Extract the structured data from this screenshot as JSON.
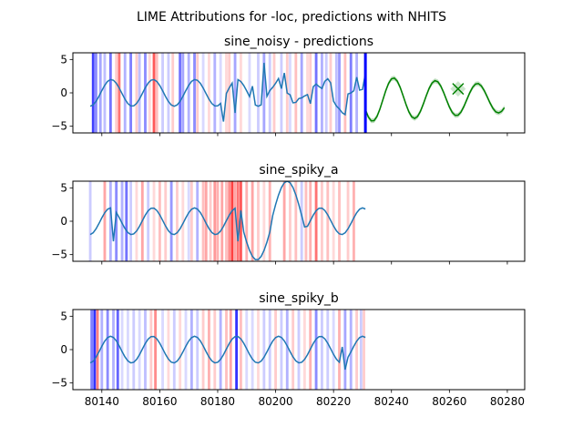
{
  "figure": {
    "suptitle": "LIME Attributions for -loc, predictions with NHITS"
  },
  "chart_data": [
    {
      "type": "line",
      "title": "sine_noisy - predictions",
      "xlim": [
        80130,
        80286
      ],
      "ylim": [
        -6,
        6
      ],
      "yticks": [
        5,
        0,
        -5
      ],
      "xticks": [
        80140,
        80160,
        80180,
        80200,
        80220,
        80240,
        80260,
        80280
      ],
      "show_xtick_labels": false,
      "forecast_start": 80231,
      "colors": {
        "series": "#1f77b4",
        "prediction": "#008000",
        "positive": "#ff0000",
        "negative": "#0000ff",
        "boundary": "#0000ff"
      },
      "series": [
        {
          "name": "",
          "kind": "sine_noisy",
          "x_start": 80136,
          "x_end": 80231
        }
      ],
      "prediction": {
        "x_start": 80231,
        "x_end": 80279,
        "marker_x": 80263,
        "marker_y": 0.6
      },
      "attributions": [
        {
          "x": 80137,
          "w": 0.9,
          "sign": "neg",
          "a": 0.75
        },
        {
          "x": 80138,
          "w": 0.9,
          "sign": "neg",
          "a": 0.45
        },
        {
          "x": 80139.5,
          "w": 0.9,
          "sign": "neg",
          "a": 0.35
        },
        {
          "x": 80141,
          "w": 0.9,
          "sign": "neg",
          "a": 0.25
        },
        {
          "x": 80143,
          "w": 0.9,
          "sign": "neg",
          "a": 0.55
        },
        {
          "x": 80145,
          "w": 0.9,
          "sign": "pos",
          "a": 0.2
        },
        {
          "x": 80146,
          "w": 0.9,
          "sign": "pos",
          "a": 0.55
        },
        {
          "x": 80148,
          "w": 0.9,
          "sign": "neg",
          "a": 0.3
        },
        {
          "x": 80150,
          "w": 0.9,
          "sign": "neg",
          "a": 0.5
        },
        {
          "x": 80152,
          "w": 0.9,
          "sign": "pos",
          "a": 0.2
        },
        {
          "x": 80153,
          "w": 0.9,
          "sign": "neg",
          "a": 0.25
        },
        {
          "x": 80155,
          "w": 0.9,
          "sign": "neg",
          "a": 0.45
        },
        {
          "x": 80156.5,
          "w": 0.9,
          "sign": "pos",
          "a": 0.15
        },
        {
          "x": 80158,
          "w": 0.9,
          "sign": "pos",
          "a": 0.65
        },
        {
          "x": 80159,
          "w": 0.9,
          "sign": "pos",
          "a": 0.25
        },
        {
          "x": 80161,
          "w": 0.9,
          "sign": "neg",
          "a": 0.2
        },
        {
          "x": 80163,
          "w": 0.9,
          "sign": "neg",
          "a": 0.2
        },
        {
          "x": 80164.5,
          "w": 0.9,
          "sign": "pos",
          "a": 0.2
        },
        {
          "x": 80167,
          "w": 0.9,
          "sign": "neg",
          "a": 0.55
        },
        {
          "x": 80168,
          "w": 0.9,
          "sign": "neg",
          "a": 0.35
        },
        {
          "x": 80170,
          "w": 0.9,
          "sign": "neg",
          "a": 0.3
        },
        {
          "x": 80172,
          "w": 0.9,
          "sign": "neg",
          "a": 0.45
        },
        {
          "x": 80173,
          "w": 0.9,
          "sign": "pos",
          "a": 0.2
        },
        {
          "x": 80175,
          "w": 0.9,
          "sign": "neg",
          "a": 0.15
        },
        {
          "x": 80177,
          "w": 0.9,
          "sign": "pos",
          "a": 0.15
        },
        {
          "x": 80179,
          "w": 0.9,
          "sign": "neg",
          "a": 0.3
        },
        {
          "x": 80181,
          "w": 0.9,
          "sign": "neg",
          "a": 0.15
        },
        {
          "x": 80183,
          "w": 0.9,
          "sign": "pos",
          "a": 0.15
        },
        {
          "x": 80184,
          "w": 0.9,
          "sign": "pos",
          "a": 0.2
        },
        {
          "x": 80186,
          "w": 0.9,
          "sign": "neg",
          "a": 0.35
        },
        {
          "x": 80188,
          "w": 0.9,
          "sign": "pos",
          "a": 0.15
        },
        {
          "x": 80191,
          "w": 0.9,
          "sign": "neg",
          "a": 0.15
        },
        {
          "x": 80194,
          "w": 0.9,
          "sign": "neg",
          "a": 0.2
        },
        {
          "x": 80196,
          "w": 0.9,
          "sign": "neg",
          "a": 0.35
        },
        {
          "x": 80198,
          "w": 0.9,
          "sign": "neg",
          "a": 0.2
        },
        {
          "x": 80199.5,
          "w": 0.9,
          "sign": "pos",
          "a": 0.2
        },
        {
          "x": 80202,
          "w": 0.9,
          "sign": "neg",
          "a": 0.2
        },
        {
          "x": 80204,
          "w": 0.9,
          "sign": "pos",
          "a": 0.2
        },
        {
          "x": 80205,
          "w": 0.9,
          "sign": "neg",
          "a": 0.15
        },
        {
          "x": 80207,
          "w": 0.9,
          "sign": "pos",
          "a": 0.25
        },
        {
          "x": 80209,
          "w": 0.9,
          "sign": "neg",
          "a": 0.35
        },
        {
          "x": 80211,
          "w": 0.9,
          "sign": "pos",
          "a": 0.15
        },
        {
          "x": 80212,
          "w": 0.9,
          "sign": "pos",
          "a": 0.2
        },
        {
          "x": 80214,
          "w": 0.9,
          "sign": "neg",
          "a": 0.55
        },
        {
          "x": 80216,
          "w": 0.9,
          "sign": "neg",
          "a": 0.3
        },
        {
          "x": 80217.5,
          "w": 0.9,
          "sign": "neg",
          "a": 0.2
        },
        {
          "x": 80219,
          "w": 0.9,
          "sign": "pos",
          "a": 0.2
        },
        {
          "x": 80221,
          "w": 0.9,
          "sign": "neg",
          "a": 0.25
        },
        {
          "x": 80222,
          "w": 0.9,
          "sign": "neg",
          "a": 0.4
        },
        {
          "x": 80224,
          "w": 0.9,
          "sign": "pos",
          "a": 0.25
        },
        {
          "x": 80226,
          "w": 0.9,
          "sign": "neg",
          "a": 0.5
        },
        {
          "x": 80228,
          "w": 0.9,
          "sign": "neg",
          "a": 0.3
        }
      ]
    },
    {
      "type": "line",
      "title": "sine_spiky_a",
      "xlim": [
        80130,
        80286
      ],
      "ylim": [
        -6,
        6
      ],
      "yticks": [
        5,
        0,
        -5
      ],
      "xticks": [
        80140,
        80160,
        80180,
        80200,
        80220,
        80240,
        80260,
        80280
      ],
      "show_xtick_labels": false,
      "colors": {
        "series": "#1f77b4",
        "positive": "#ff0000",
        "negative": "#0000ff"
      },
      "series": [
        {
          "name": "",
          "kind": "sine_spiky_a",
          "x_start": 80136,
          "x_end": 80231
        }
      ],
      "attributions": [
        {
          "x": 80136,
          "w": 0.9,
          "sign": "neg",
          "a": 0.2
        },
        {
          "x": 80141,
          "w": 0.9,
          "sign": "pos",
          "a": 0.35
        },
        {
          "x": 80143,
          "w": 0.9,
          "sign": "neg",
          "a": 0.3
        },
        {
          "x": 80145,
          "w": 0.9,
          "sign": "neg",
          "a": 0.45
        },
        {
          "x": 80147,
          "w": 0.9,
          "sign": "neg",
          "a": 0.3
        },
        {
          "x": 80148.5,
          "w": 0.9,
          "sign": "neg",
          "a": 0.55
        },
        {
          "x": 80150,
          "w": 0.9,
          "sign": "neg",
          "a": 0.2
        },
        {
          "x": 80152,
          "w": 0.9,
          "sign": "pos",
          "a": 0.15
        },
        {
          "x": 80154,
          "w": 0.9,
          "sign": "pos",
          "a": 0.35
        },
        {
          "x": 80156,
          "w": 0.9,
          "sign": "neg",
          "a": 0.2
        },
        {
          "x": 80158,
          "w": 0.9,
          "sign": "pos",
          "a": 0.15
        },
        {
          "x": 80160,
          "w": 0.9,
          "sign": "pos",
          "a": 0.25
        },
        {
          "x": 80162,
          "w": 0.9,
          "sign": "pos",
          "a": 0.2
        },
        {
          "x": 80164,
          "w": 0.9,
          "sign": "neg",
          "a": 0.4
        },
        {
          "x": 80166,
          "w": 0.9,
          "sign": "pos",
          "a": 0.2
        },
        {
          "x": 80168,
          "w": 0.9,
          "sign": "pos",
          "a": 0.15
        },
        {
          "x": 80170,
          "w": 0.9,
          "sign": "neg",
          "a": 0.15
        },
        {
          "x": 80171,
          "w": 0.9,
          "sign": "pos",
          "a": 0.2
        },
        {
          "x": 80173,
          "w": 0.9,
          "sign": "neg",
          "a": 0.3
        },
        {
          "x": 80175,
          "w": 0.9,
          "sign": "pos",
          "a": 0.25
        },
        {
          "x": 80176,
          "w": 0.9,
          "sign": "pos",
          "a": 0.35
        },
        {
          "x": 80177.5,
          "w": 0.9,
          "sign": "pos",
          "a": 0.2
        },
        {
          "x": 80179,
          "w": 0.9,
          "sign": "pos",
          "a": 0.4
        },
        {
          "x": 80180,
          "w": 0.9,
          "sign": "pos",
          "a": 0.3
        },
        {
          "x": 80181.5,
          "w": 0.9,
          "sign": "pos",
          "a": 0.35
        },
        {
          "x": 80183,
          "w": 0.9,
          "sign": "pos",
          "a": 0.25
        },
        {
          "x": 80184,
          "w": 0.9,
          "sign": "pos",
          "a": 0.45
        },
        {
          "x": 80185,
          "w": 0.9,
          "sign": "pos",
          "a": 0.75
        },
        {
          "x": 80186,
          "w": 0.9,
          "sign": "pos",
          "a": 0.35
        },
        {
          "x": 80187,
          "w": 0.9,
          "sign": "pos",
          "a": 0.55
        },
        {
          "x": 80188,
          "w": 0.9,
          "sign": "pos",
          "a": 0.65
        },
        {
          "x": 80190,
          "w": 0.9,
          "sign": "pos",
          "a": 0.3
        },
        {
          "x": 80192,
          "w": 0.9,
          "sign": "pos",
          "a": 0.35
        },
        {
          "x": 80194,
          "w": 0.9,
          "sign": "pos",
          "a": 0.2
        },
        {
          "x": 80196,
          "w": 0.9,
          "sign": "pos",
          "a": 0.15
        },
        {
          "x": 80198,
          "w": 0.9,
          "sign": "pos",
          "a": 0.3
        },
        {
          "x": 80203,
          "w": 0.9,
          "sign": "pos",
          "a": 0.35
        },
        {
          "x": 80205,
          "w": 0.9,
          "sign": "pos",
          "a": 0.2
        },
        {
          "x": 80207,
          "w": 0.9,
          "sign": "pos",
          "a": 0.25
        },
        {
          "x": 80209,
          "w": 0.9,
          "sign": "neg",
          "a": 0.2
        },
        {
          "x": 80210.5,
          "w": 0.9,
          "sign": "pos",
          "a": 0.25
        },
        {
          "x": 80212,
          "w": 0.9,
          "sign": "pos",
          "a": 0.3
        },
        {
          "x": 80214,
          "w": 0.9,
          "sign": "pos",
          "a": 0.55
        },
        {
          "x": 80216,
          "w": 0.9,
          "sign": "pos",
          "a": 0.2
        },
        {
          "x": 80218,
          "w": 0.9,
          "sign": "pos",
          "a": 0.25
        },
        {
          "x": 80220,
          "w": 0.9,
          "sign": "pos",
          "a": 0.15
        },
        {
          "x": 80222,
          "w": 0.9,
          "sign": "pos",
          "a": 0.25
        },
        {
          "x": 80225,
          "w": 0.9,
          "sign": "pos",
          "a": 0.2
        },
        {
          "x": 80227,
          "w": 0.9,
          "sign": "pos",
          "a": 0.3
        }
      ]
    },
    {
      "type": "line",
      "title": "sine_spiky_b",
      "xlim": [
        80130,
        80286
      ],
      "ylim": [
        -6,
        6
      ],
      "yticks": [
        5,
        0,
        -5
      ],
      "xticks": [
        80140,
        80160,
        80180,
        80200,
        80220,
        80240,
        80260,
        80280
      ],
      "show_xtick_labels": true,
      "colors": {
        "series": "#1f77b4",
        "positive": "#ff0000",
        "negative": "#0000ff"
      },
      "series": [
        {
          "name": "",
          "kind": "sine_spiky_b",
          "x_start": 80136,
          "x_end": 80231
        }
      ],
      "attributions": [
        {
          "x": 80136.5,
          "w": 0.9,
          "sign": "neg",
          "a": 0.5
        },
        {
          "x": 80137.5,
          "w": 0.9,
          "sign": "neg",
          "a": 0.8
        },
        {
          "x": 80138.5,
          "w": 0.9,
          "sign": "pos",
          "a": 0.5
        },
        {
          "x": 80140,
          "w": 0.9,
          "sign": "neg",
          "a": 0.3
        },
        {
          "x": 80142,
          "w": 0.9,
          "sign": "neg",
          "a": 0.45
        },
        {
          "x": 80144,
          "w": 0.9,
          "sign": "neg",
          "a": 0.3
        },
        {
          "x": 80145.5,
          "w": 0.9,
          "sign": "neg",
          "a": 0.6
        },
        {
          "x": 80147,
          "w": 0.9,
          "sign": "neg",
          "a": 0.15
        },
        {
          "x": 80149,
          "w": 0.9,
          "sign": "neg",
          "a": 0.15
        },
        {
          "x": 80151,
          "w": 0.9,
          "sign": "neg",
          "a": 0.2
        },
        {
          "x": 80153,
          "w": 0.9,
          "sign": "neg",
          "a": 0.15
        },
        {
          "x": 80155,
          "w": 0.9,
          "sign": "neg",
          "a": 0.25
        },
        {
          "x": 80157,
          "w": 0.9,
          "sign": "pos",
          "a": 0.2
        },
        {
          "x": 80158.5,
          "w": 0.9,
          "sign": "pos",
          "a": 0.45
        },
        {
          "x": 80161,
          "w": 0.9,
          "sign": "neg",
          "a": 0.15
        },
        {
          "x": 80163,
          "w": 0.9,
          "sign": "pos",
          "a": 0.15
        },
        {
          "x": 80165,
          "w": 0.9,
          "sign": "neg",
          "a": 0.2
        },
        {
          "x": 80167,
          "w": 0.9,
          "sign": "pos",
          "a": 0.15
        },
        {
          "x": 80169,
          "w": 0.9,
          "sign": "neg",
          "a": 0.15
        },
        {
          "x": 80171,
          "w": 0.9,
          "sign": "neg",
          "a": 0.3
        },
        {
          "x": 80173,
          "w": 0.9,
          "sign": "neg",
          "a": 0.2
        },
        {
          "x": 80175,
          "w": 0.9,
          "sign": "pos",
          "a": 0.2
        },
        {
          "x": 80177,
          "w": 0.9,
          "sign": "pos",
          "a": 0.3
        },
        {
          "x": 80179,
          "w": 0.9,
          "sign": "pos",
          "a": 0.2
        },
        {
          "x": 80181,
          "w": 0.9,
          "sign": "neg",
          "a": 0.3
        },
        {
          "x": 80183,
          "w": 0.9,
          "sign": "pos",
          "a": 0.25
        },
        {
          "x": 80184.5,
          "w": 0.9,
          "sign": "pos",
          "a": 0.35
        },
        {
          "x": 80186.5,
          "w": 0.9,
          "sign": "neg",
          "a": 0.8
        },
        {
          "x": 80188,
          "w": 0.9,
          "sign": "pos",
          "a": 0.25
        },
        {
          "x": 80190,
          "w": 0.9,
          "sign": "neg",
          "a": 0.15
        },
        {
          "x": 80192,
          "w": 0.9,
          "sign": "neg",
          "a": 0.15
        },
        {
          "x": 80194,
          "w": 0.9,
          "sign": "pos",
          "a": 0.15
        },
        {
          "x": 80196,
          "w": 0.9,
          "sign": "neg",
          "a": 0.2
        },
        {
          "x": 80198,
          "w": 0.9,
          "sign": "neg",
          "a": 0.2
        },
        {
          "x": 80200,
          "w": 0.9,
          "sign": "pos",
          "a": 0.2
        },
        {
          "x": 80202,
          "w": 0.9,
          "sign": "neg",
          "a": 0.2
        },
        {
          "x": 80204,
          "w": 0.9,
          "sign": "neg",
          "a": 0.3
        },
        {
          "x": 80206,
          "w": 0.9,
          "sign": "pos",
          "a": 0.2
        },
        {
          "x": 80208,
          "w": 0.9,
          "sign": "neg",
          "a": 0.2
        },
        {
          "x": 80210,
          "w": 0.9,
          "sign": "pos",
          "a": 0.15
        },
        {
          "x": 80212,
          "w": 0.9,
          "sign": "pos",
          "a": 0.3
        },
        {
          "x": 80214,
          "w": 0.9,
          "sign": "neg",
          "a": 0.45
        },
        {
          "x": 80216,
          "w": 0.9,
          "sign": "neg",
          "a": 0.2
        },
        {
          "x": 80218,
          "w": 0.9,
          "sign": "neg",
          "a": 0.2
        },
        {
          "x": 80220,
          "w": 0.9,
          "sign": "neg",
          "a": 0.15
        },
        {
          "x": 80222,
          "w": 0.9,
          "sign": "pos",
          "a": 0.3
        },
        {
          "x": 80224,
          "w": 0.9,
          "sign": "neg",
          "a": 0.35
        },
        {
          "x": 80226,
          "w": 0.9,
          "sign": "neg",
          "a": 0.3
        },
        {
          "x": 80228,
          "w": 0.9,
          "sign": "pos",
          "a": 0.2
        },
        {
          "x": 80229.5,
          "w": 0.9,
          "sign": "neg",
          "a": 0.2
        },
        {
          "x": 80230.5,
          "w": 0.9,
          "sign": "pos",
          "a": 0.2
        }
      ]
    }
  ]
}
